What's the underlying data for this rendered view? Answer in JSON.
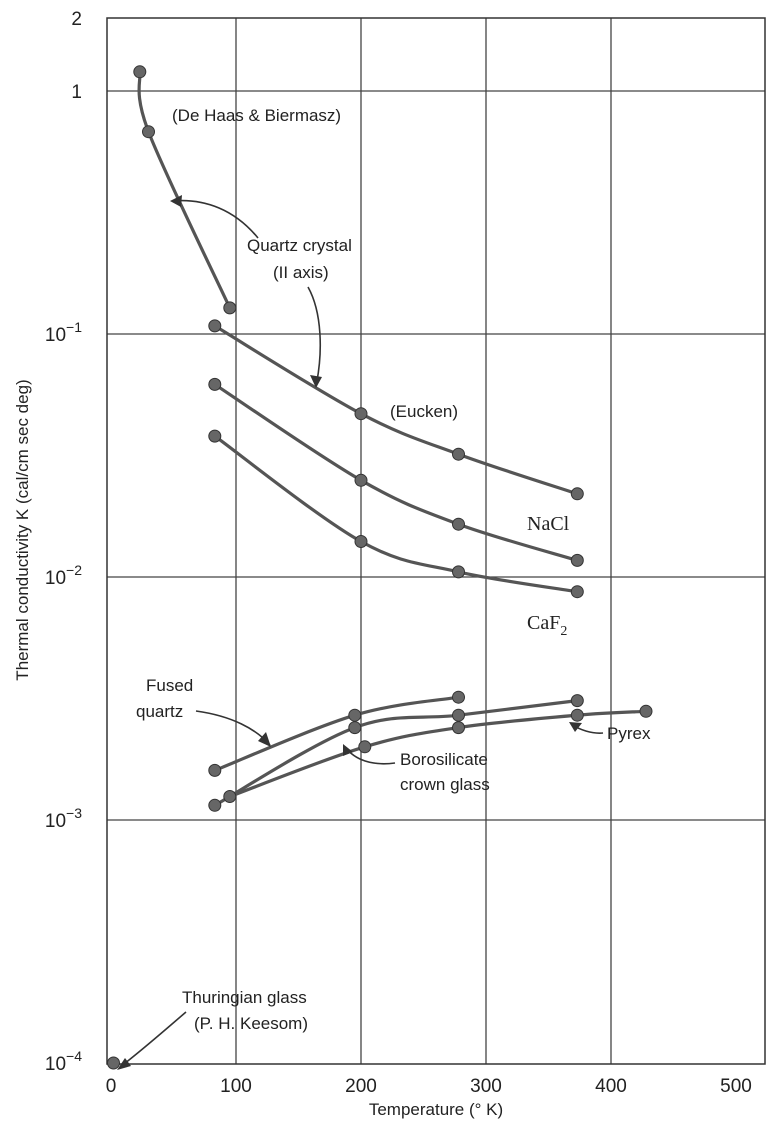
{
  "chart_data": {
    "type": "line",
    "title": "",
    "xlabel": "Temperature (° K)",
    "ylabel": "Thermal conductivity K (cal/cm sec deg)",
    "xlim": [
      0,
      500
    ],
    "ylim": [
      0.0001,
      2
    ],
    "y_scale": "log",
    "grid": true,
    "x_ticks": [
      {
        "value": 0,
        "label": "0"
      },
      {
        "value": 100,
        "label": "100"
      },
      {
        "value": 200,
        "label": "200"
      },
      {
        "value": 300,
        "label": "300"
      },
      {
        "value": 400,
        "label": "400"
      },
      {
        "value": 500,
        "label": "500"
      }
    ],
    "y_ticks": [
      {
        "value": 2,
        "base": "2",
        "exp": ""
      },
      {
        "value": 1,
        "base": "1",
        "exp": ""
      },
      {
        "value": 0.1,
        "base": "10",
        "exp": "−1"
      },
      {
        "value": 0.01,
        "base": "10",
        "exp": "−2"
      },
      {
        "value": 0.001,
        "base": "10",
        "exp": "−3"
      },
      {
        "value": 0.0001,
        "base": "10",
        "exp": "−4"
      }
    ],
    "series": [
      {
        "key": "quartz",
        "x": [
          23,
          30,
          95,
          83,
          200,
          278,
          373
        ],
        "y": [
          1.2,
          0.68,
          0.128,
          0.108,
          0.047,
          0.032,
          0.022
        ]
      },
      {
        "key": "nacl",
        "x": [
          83,
          200,
          278,
          373
        ],
        "y": [
          0.062,
          0.025,
          0.0165,
          0.0117
        ]
      },
      {
        "key": "caf2",
        "x": [
          83,
          200,
          278,
          373
        ],
        "y": [
          0.038,
          0.014,
          0.0105,
          0.0087
        ]
      },
      {
        "key": "fused_quartz",
        "x": [
          83,
          195,
          278
        ],
        "y": [
          0.0016,
          0.0027,
          0.0032
        ]
      },
      {
        "key": "borosilicate",
        "x": [
          83,
          195,
          278,
          373
        ],
        "y": [
          0.00115,
          0.0024,
          0.0027,
          0.0031
        ]
      },
      {
        "key": "pyrex",
        "x": [
          95,
          203,
          278,
          373,
          428
        ],
        "y": [
          0.00125,
          0.002,
          0.0024,
          0.0027,
          0.0028
        ]
      },
      {
        "key": "thuringian",
        "x": [
          2
        ],
        "y": [
          0.0001
        ]
      }
    ],
    "annotations": {
      "de_haas": "(De Haas & Biermasz)",
      "quartz_crystal_1": "Quartz crystal",
      "quartz_crystal_2": "(II axis)",
      "eucken": "(Eucken)",
      "nacl": "NaCl",
      "caf2_base": "CaF",
      "caf2_sub": "2",
      "fused_1": "Fused",
      "fused_2": "quartz",
      "pyrex": "Pyrex",
      "boro_1": "Borosilicate",
      "boro_2": "crown glass",
      "thur_1": "Thuringian glass",
      "thur_2": "(P. H. Keesom)"
    }
  }
}
